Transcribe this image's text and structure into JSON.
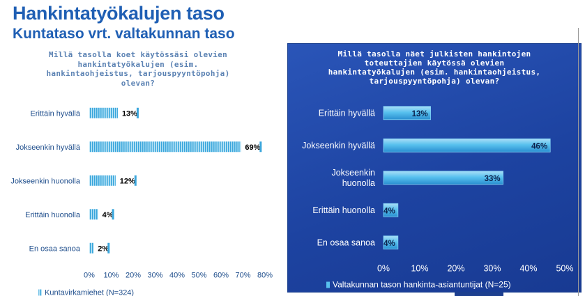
{
  "header": {
    "title": "Hankintatyökalujen taso",
    "subtitle": "Kuntataso vrt. valtakunnan taso"
  },
  "colors": {
    "title": "#1f5fb4",
    "left_bar": "#3aa6dc",
    "left_bar_stripe": "#bfe6f7",
    "right_bg": "#1f46a6",
    "right_bar": "#3fb3ea",
    "right_bar_light": "#a9def7"
  },
  "chart_data": [
    {
      "type": "bar",
      "orientation": "horizontal",
      "title": "Millä tasolla koet käytössäsi olevien\nhankintatyökalujen (esim.\nhankintaohjeistus, tarjouspyyntöpohja)\nolevan?",
      "categories": [
        "Erittäin hyvällä",
        "Jokseenkin hyvällä",
        "Jokseenkin huonolla",
        "Erittäin huonolla",
        "En osaa sanoa"
      ],
      "series": [
        {
          "name": "Kuntavirkamiehet (N=324)",
          "values": [
            13,
            69,
            12,
            4,
            2
          ]
        }
      ],
      "data_labels": [
        "13%",
        "69%",
        "12%",
        "4%",
        "2%"
      ],
      "xlim": [
        0,
        80
      ],
      "xticks": [
        0,
        10,
        20,
        30,
        40,
        50,
        60,
        70,
        80
      ],
      "xtick_labels": [
        "0%",
        "10%",
        "20%",
        "30%",
        "40%",
        "50%",
        "60%",
        "70%",
        "80%"
      ],
      "grid": false,
      "legend": "bottom-left"
    },
    {
      "type": "bar",
      "orientation": "horizontal",
      "title": "Millä tasolla näet julkisten hankintojen\ntoteuttajien käytössä olevien\nhankintatyökalujen (esim. hankintaohjeistus,\ntarjouspyyntöpohja) olevan?",
      "categories": [
        "Erittäin hyvällä",
        "Jokseenkin hyvällä",
        "Jokseenkin\nhuonolla",
        "Erittäin huonolla",
        "En osaa sanoa"
      ],
      "series": [
        {
          "name": "Valtakunnan tason hankinta-asiantuntijat (N=25)",
          "values": [
            13,
            46,
            33,
            4,
            4
          ]
        }
      ],
      "data_labels": [
        "13%",
        "46%",
        "33%",
        "4%",
        "4%"
      ],
      "xlim": [
        0,
        50
      ],
      "xticks": [
        0,
        10,
        20,
        30,
        40,
        50
      ],
      "xtick_labels": [
        "0%",
        "10%",
        "20%",
        "30%",
        "40%",
        "50%"
      ],
      "grid": false,
      "legend": "bottom"
    }
  ]
}
